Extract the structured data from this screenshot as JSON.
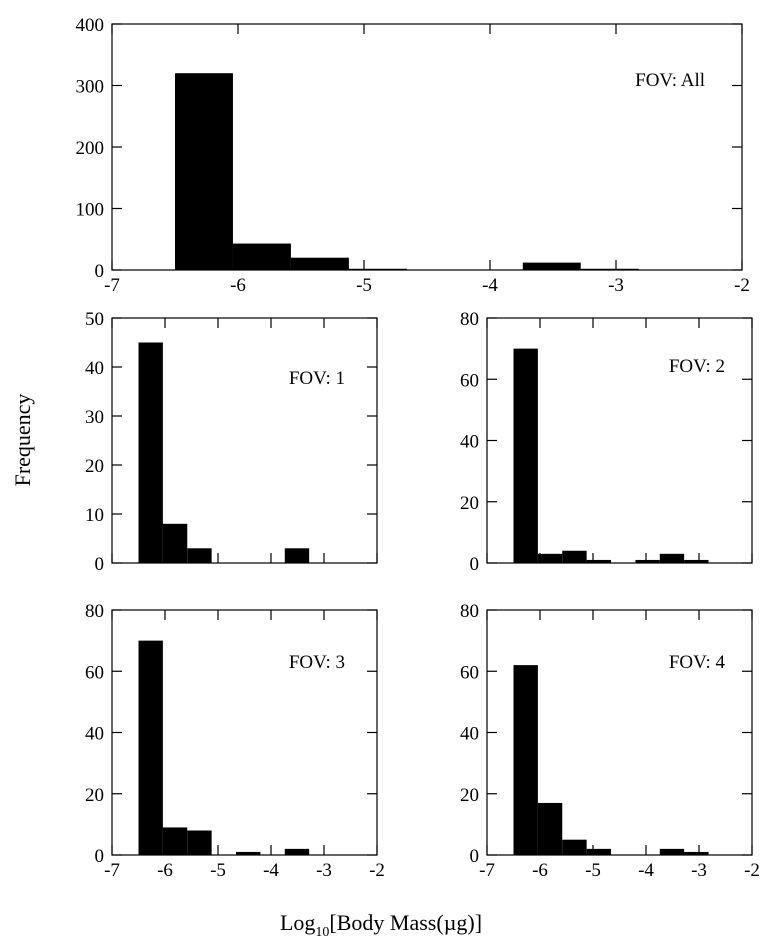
{
  "y_label": "Frequency",
  "x_label": {
    "base": "Log",
    "subscript": "10",
    "rest": "[Body Mass(µg)]"
  },
  "chart_data": [
    {
      "type": "histogram",
      "annotation": "FOV: All",
      "color": "#000000",
      "bins": [
        -6.5,
        -6.04,
        -5.58,
        -5.12,
        -4.66,
        -4.2,
        -3.74,
        -3.28,
        -2.82
      ],
      "values": [
        320,
        43,
        20,
        2,
        0,
        0,
        12,
        2
      ],
      "xlim": [
        -7,
        -2
      ],
      "xticks": [
        -7,
        -6,
        -5,
        -4,
        -3,
        -2
      ],
      "xtick_labels": true,
      "ylim": [
        0,
        400
      ],
      "yticks": [
        0,
        100,
        200,
        300,
        400
      ]
    },
    {
      "type": "histogram",
      "annotation": "FOV: 1",
      "color": "#000000",
      "bins": [
        -6.5,
        -6.04,
        -5.58,
        -5.12,
        -4.66,
        -4.2,
        -3.74,
        -3.28,
        -2.82
      ],
      "values": [
        45,
        8,
        3,
        0,
        0,
        0,
        3,
        0
      ],
      "xlim": [
        -7,
        -2
      ],
      "xticks": [
        -7,
        -6,
        -5,
        -4,
        -3,
        -2
      ],
      "xtick_labels": false,
      "ylim": [
        0,
        50
      ],
      "yticks": [
        0,
        10,
        20,
        30,
        40,
        50
      ]
    },
    {
      "type": "histogram",
      "annotation": "FOV: 2",
      "color": "#000000",
      "bins": [
        -6.5,
        -6.04,
        -5.58,
        -5.12,
        -4.66,
        -4.2,
        -3.74,
        -3.28,
        -2.82
      ],
      "values": [
        70,
        3,
        4,
        1,
        0,
        1,
        3,
        1
      ],
      "xlim": [
        -7,
        -2
      ],
      "xticks": [
        -7,
        -6,
        -5,
        -4,
        -3,
        -2
      ],
      "xtick_labels": false,
      "ylim": [
        0,
        80
      ],
      "yticks": [
        0,
        20,
        40,
        60,
        80
      ]
    },
    {
      "type": "histogram",
      "annotation": "FOV: 3",
      "color": "#000000",
      "bins": [
        -6.5,
        -6.04,
        -5.58,
        -5.12,
        -4.66,
        -4.2,
        -3.74,
        -3.28,
        -2.82
      ],
      "values": [
        70,
        9,
        8,
        0,
        1,
        0,
        2,
        0
      ],
      "xlim": [
        -7,
        -2
      ],
      "xticks": [
        -7,
        -6,
        -5,
        -4,
        -3,
        -2
      ],
      "xtick_labels": true,
      "ylim": [
        0,
        80
      ],
      "yticks": [
        0,
        20,
        40,
        60,
        80
      ]
    },
    {
      "type": "histogram",
      "annotation": "FOV: 4",
      "color": "#000000",
      "bins": [
        -6.5,
        -6.04,
        -5.58,
        -5.12,
        -4.66,
        -4.2,
        -3.74,
        -3.28,
        -2.82
      ],
      "values": [
        62,
        17,
        5,
        2,
        0,
        0,
        2,
        1
      ],
      "xlim": [
        -7,
        -2
      ],
      "xticks": [
        -7,
        -6,
        -5,
        -4,
        -3,
        -2
      ],
      "xtick_labels": true,
      "ylim": [
        0,
        80
      ],
      "yticks": [
        0,
        20,
        40,
        60,
        80
      ]
    }
  ]
}
